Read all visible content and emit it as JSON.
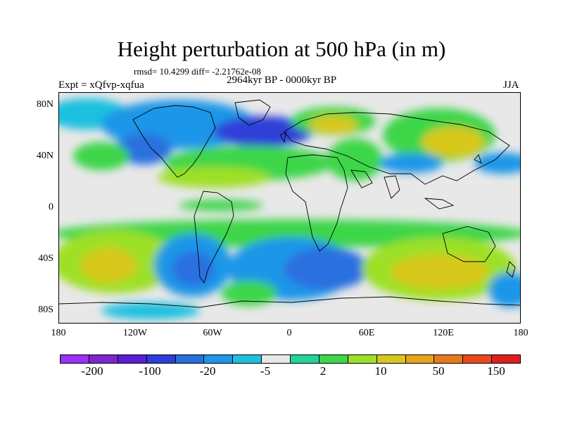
{
  "title": "Height perturbation at 500 hPa (in m)",
  "stats_line": "rmsd= 10.4299 diff= -2.21762e-08",
  "period": "2964kyr BP - 0000kyr BP",
  "experiment": "Expt = xQfvp-xqfua",
  "season": "JJA",
  "map": {
    "lat_labels": [
      "80N",
      "40N",
      "0",
      "40S",
      "80S"
    ],
    "lon_labels": [
      "180",
      "120W",
      "60W",
      "0",
      "60E",
      "120E",
      "180"
    ],
    "lat_range": [
      -90,
      90
    ],
    "lon_range": [
      -180,
      180
    ]
  },
  "colorbar": {
    "colors": [
      "#9b30ff",
      "#7d26cd",
      "#5a1fd6",
      "#2d3fd8",
      "#2a6fe0",
      "#1e96e8",
      "#1ec0e0",
      "#e8e8e8",
      "#22d39b",
      "#3ed64a",
      "#9de028",
      "#d8c81e",
      "#e8a41e",
      "#e87a1e",
      "#e84a1e",
      "#e01e1e"
    ],
    "labels": [
      "-200",
      "-100",
      "-20",
      "-5",
      "2",
      "10",
      "50",
      "150"
    ]
  }
}
